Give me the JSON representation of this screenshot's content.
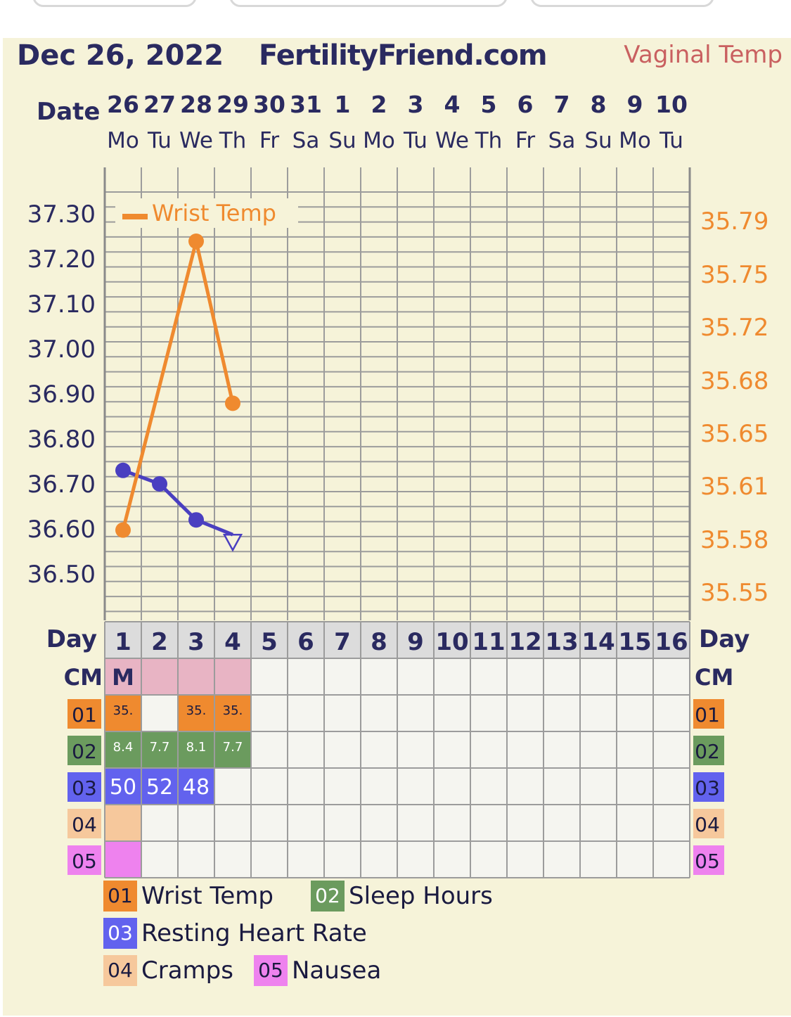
{
  "header": {
    "date": "Dec 26, 2022",
    "site": "FertilityFriend.com",
    "temp_type": "Vaginal Temp"
  },
  "colors": {
    "bbt_line": "#4a3fc0",
    "wrist_line": "#ef8a2f",
    "grid": "#9c9c9c",
    "text": "#2a2a60"
  },
  "date_row": {
    "label": "Date",
    "dates": [
      "26",
      "27",
      "28",
      "29",
      "30",
      "31",
      "1",
      "2",
      "3",
      "4",
      "5",
      "6",
      "7",
      "8",
      "9",
      "10"
    ],
    "weekdays": [
      "Mo",
      "Tu",
      "We",
      "Th",
      "Fr",
      "Sa",
      "Su",
      "Mo",
      "Tu",
      "We",
      "Th",
      "Fr",
      "Sa",
      "Su",
      "Mo",
      "Tu"
    ]
  },
  "chart_data": {
    "type": "line",
    "title": "",
    "x": [
      1,
      2,
      3,
      4,
      5,
      6,
      7,
      8,
      9,
      10,
      11,
      12,
      13,
      14,
      15,
      16
    ],
    "xlabel": "Day",
    "y_left_ticks": [
      "37.30",
      "37.20",
      "37.10",
      "37.00",
      "36.90",
      "36.80",
      "36.70",
      "36.60",
      "36.50"
    ],
    "y_right_ticks": [
      "35.79",
      "35.75",
      "35.72",
      "35.68",
      "35.65",
      "35.61",
      "35.58",
      "35.55"
    ],
    "ylim_left": [
      36.45,
      37.35
    ],
    "ylim_right": [
      35.53,
      35.82
    ],
    "grid": true,
    "legend_placement": "top-left",
    "series": [
      {
        "name": "",
        "axis": "left",
        "marker": "circle",
        "points": [
          {
            "day": 1,
            "value": 36.73
          },
          {
            "day": 2,
            "value": 36.7
          },
          {
            "day": 3,
            "value": 36.62
          }
        ]
      },
      {
        "name": "",
        "axis": "left",
        "marker": "open-triangle",
        "points": [
          {
            "day": 4,
            "value": 36.57
          }
        ]
      },
      {
        "name": "Wrist Temp",
        "axis": "right",
        "marker": "circle",
        "points": [
          {
            "day": 1,
            "value": 35.57
          },
          {
            "day": 3,
            "value": 35.775
          },
          {
            "day": 4,
            "value": 35.66
          }
        ]
      }
    ]
  },
  "grid_rows": {
    "day_label": "Day",
    "days": [
      "1",
      "2",
      "3",
      "4",
      "5",
      "6",
      "7",
      "8",
      "9",
      "10",
      "11",
      "12",
      "13",
      "14",
      "15",
      "16"
    ],
    "cm_label": "CM",
    "cm": [
      "M",
      "",
      "",
      "",
      "",
      "",
      "",
      "",
      "",
      "",
      "",
      "",
      "",
      "",
      "",
      ""
    ],
    "cm_shaded": [
      true,
      true,
      true,
      true,
      false,
      false,
      false,
      false,
      false,
      false,
      false,
      false,
      false,
      false,
      false,
      false
    ],
    "custom": [
      {
        "code": "01",
        "color": "#ef8a2f",
        "values": [
          "35.",
          "",
          "35.",
          "35.",
          "",
          "",
          "",
          "",
          "",
          "",
          "",
          "",
          "",
          "",
          "",
          ""
        ]
      },
      {
        "code": "02",
        "color": "#6b9b5e",
        "values": [
          "8.4",
          "7.7",
          "8.1",
          "7.7",
          "",
          "",
          "",
          "",
          "",
          "",
          "",
          "",
          "",
          "",
          "",
          ""
        ]
      },
      {
        "code": "03",
        "color": "#6262ee",
        "values": [
          "50",
          "52",
          "48",
          "",
          "",
          "",
          "",
          "",
          "",
          "",
          "",
          "",
          "",
          "",
          "",
          ""
        ]
      },
      {
        "code": "04",
        "color": "#f6c89c",
        "values": [
          "",
          "",
          "",
          "",
          "",
          "",
          "",
          "",
          "",
          "",
          "",
          "",
          "",
          "",
          "",
          ""
        ]
      },
      {
        "code": "05",
        "color": "#ee82ee",
        "values": [
          "",
          "",
          "",
          "",
          "",
          "",
          "",
          "",
          "",
          "",
          "",
          "",
          "",
          "",
          "",
          ""
        ]
      }
    ]
  },
  "legend": [
    {
      "code": "01",
      "label": "Wrist Temp",
      "color": "#ef8a2f"
    },
    {
      "code": "02",
      "label": "Sleep Hours",
      "color": "#6b9b5e"
    },
    {
      "code": "03",
      "label": "Resting Heart Rate",
      "color": "#6262ee"
    },
    {
      "code": "04",
      "label": "Cramps",
      "color": "#f6c89c"
    },
    {
      "code": "05",
      "label": "Nausea",
      "color": "#ee82ee"
    }
  ]
}
